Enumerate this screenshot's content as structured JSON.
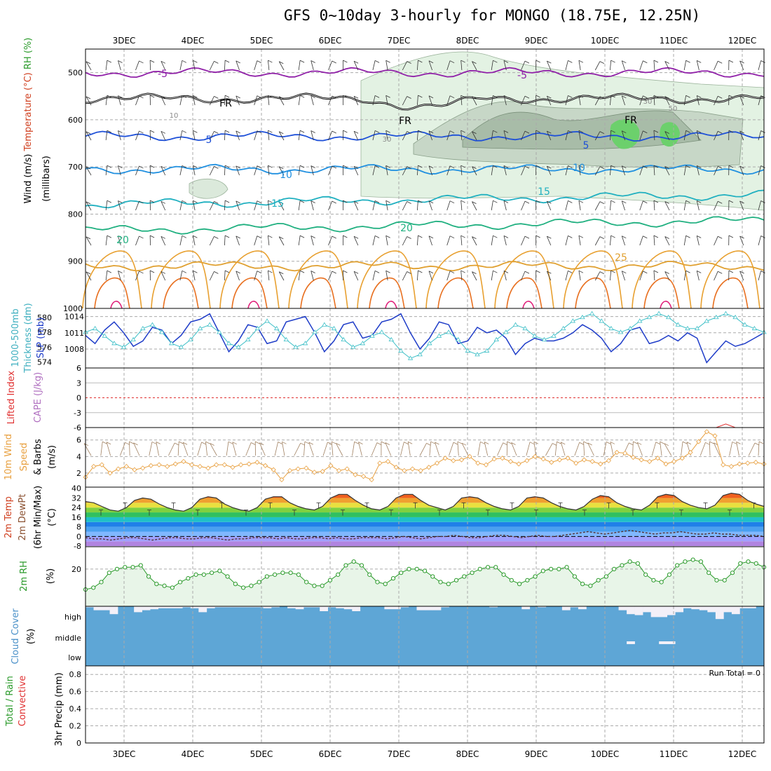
{
  "title": "GFS 0~10day 3-hourly for MONGO (18.75E, 12.25N)",
  "date_labels": [
    "3DEC",
    "4DEC",
    "5DEC",
    "6DEC",
    "7DEC",
    "8DEC",
    "9DEC",
    "10DEC",
    "11DEC",
    "12DEC"
  ],
  "colors": {
    "grid": "#aaaaaa",
    "cloud": "#5ea6d6",
    "rh_shade": "#e8f5e8",
    "rh_line": "#2a9a2a",
    "wind10": "#e8a040",
    "slp": "#1e3cc8",
    "thick": "#40c0c8",
    "cape_line": "#e03030"
  },
  "chart_data": [
    {
      "type": "contour",
      "panel": "upper-air",
      "ylabel_parts": [
        "Wind (m/s)",
        "Temperature (°C)",
        "RH (%)",
        "(millibars)"
      ],
      "y_ticks": [
        500,
        600,
        700,
        800,
        900,
        1000
      ],
      "y_range": [
        450,
        1000
      ],
      "isotherms": [
        {
          "label": "-5",
          "level_mb": 500
        },
        {
          "label": "FR",
          "level_mb": 555
        },
        {
          "label": "5",
          "level_mb": 635
        },
        {
          "label": "10",
          "level_mb": 705
        },
        {
          "label": "15",
          "level_mb": 780
        },
        {
          "label": "20",
          "level_mb": 835
        },
        {
          "label": "25",
          "level_mb": 910
        }
      ],
      "rh_contour_labels": [
        "10",
        "30",
        "30",
        "50"
      ]
    },
    {
      "type": "line",
      "panel": "slp-thickness",
      "ylabel_parts": [
        "1000-500mb",
        "Thickness (dm)",
        "SLP (mb)"
      ],
      "left_ticks": [
        "580",
        "578",
        "576",
        "574"
      ],
      "right_ticks": [
        "1014",
        "1011",
        "1008"
      ],
      "series": [
        {
          "name": "SLP (mb)",
          "values": [
            1010.5,
            1009,
            1011.5,
            1013,
            1011,
            1008.5,
            1009.5,
            1012,
            1011.5,
            1009,
            1010.5,
            1013,
            1013.5,
            1014.5,
            1011,
            1007.5,
            1009.5,
            1012.5,
            1012,
            1009,
            1009.5,
            1013,
            1013.5,
            1014,
            1011,
            1007.5,
            1009.5,
            1012.5,
            1013,
            1010,
            1010.5,
            1013,
            1013.5,
            1014.5,
            1011,
            1008,
            1010,
            1013,
            1012.5,
            1009,
            1009.5,
            1012,
            1011,
            1011.5,
            1010,
            1007,
            1009,
            1010,
            1009.5,
            1009.5,
            1010,
            1011,
            1012.5,
            1011.5,
            1010,
            1007.5,
            1009,
            1011.5,
            1012,
            1009,
            1009.5,
            1010.5,
            1009.5,
            1011,
            1010,
            1005.5,
            1007.5,
            1009.5,
            1008.5,
            1009,
            1010,
            1011
          ]
        },
        {
          "name": "Thickness (dm)",
          "values": [
            578,
            578.5,
            577.5,
            576.5,
            576,
            577,
            578.5,
            579,
            578,
            576.5,
            576,
            577,
            578.5,
            579,
            578,
            576.5,
            576,
            577,
            578.5,
            579.5,
            578.5,
            577,
            576,
            576.5,
            578,
            579,
            578.5,
            577,
            576,
            576.5,
            577.5,
            578,
            577,
            575.5,
            574.5,
            575,
            576.5,
            577.5,
            578,
            577,
            575.5,
            575,
            575.5,
            577,
            578,
            579,
            578.5,
            577.5,
            577,
            577.5,
            578.5,
            579.5,
            580,
            580.5,
            579.5,
            578.5,
            578,
            578.5,
            579.5,
            580,
            580.5,
            580,
            579,
            578.5,
            578.5,
            579.5,
            580,
            580.5,
            580,
            579,
            578.5,
            578
          ]
        }
      ]
    },
    {
      "type": "line",
      "panel": "cape-li",
      "ylabel_parts": [
        "Lifted Index",
        "CAPE (J/kg)"
      ],
      "left_ticks": [
        "6",
        "3",
        "0",
        "-3",
        "-6"
      ],
      "series": [
        {
          "name": "CAPE",
          "values": [
            0,
            0,
            0,
            0,
            0,
            0,
            0,
            0,
            0,
            0,
            0,
            0,
            0,
            0,
            0,
            0,
            0,
            0,
            0,
            0,
            0,
            0,
            0,
            0,
            0,
            0,
            0,
            0,
            0,
            0,
            0,
            0,
            0,
            0,
            0,
            0,
            0,
            0,
            0,
            0,
            0,
            0,
            0,
            0,
            0,
            0,
            0,
            0,
            0,
            0,
            0,
            0,
            0,
            0,
            0,
            0,
            0,
            0,
            0,
            0,
            0,
            0,
            0,
            0,
            0,
            0,
            0,
            12,
            0,
            0,
            0,
            0
          ]
        }
      ]
    },
    {
      "type": "line",
      "panel": "10m-wind",
      "ylabel_parts": [
        "10m Wind",
        "Speed",
        "& Barbs",
        "(m/s)"
      ],
      "y_ticks": [
        2,
        4,
        6
      ],
      "series": [
        {
          "name": "10m Wind Speed",
          "values": [
            1.5,
            2.8,
            3,
            2,
            2.5,
            2.8,
            2.4,
            2.6,
            2.9,
            3,
            2.8,
            3.1,
            3.4,
            3,
            2.8,
            2.6,
            3,
            3,
            2.7,
            3,
            3.1,
            3.3,
            2.9,
            2.4,
            1.2,
            2.3,
            2.5,
            2.6,
            2.1,
            2.2,
            2.9,
            2.3,
            2.5,
            1.8,
            1.6,
            1.2,
            3.2,
            3.4,
            2.7,
            2.3,
            2.5,
            2.3,
            2.7,
            3.2,
            3.8,
            3.5,
            3.6,
            4,
            3.2,
            3,
            3.7,
            3.8,
            3.4,
            3.1,
            3.5,
            4,
            3.7,
            3.3,
            3.6,
            3.8,
            3.2,
            3.6,
            3.4,
            3.1,
            3.5,
            4.5,
            4.4,
            3.9,
            3.6,
            3.4,
            3.8,
            3.1,
            3.4,
            3.8,
            4.5,
            5.8,
            7,
            6.5,
            3,
            2.8,
            3.1,
            3.2,
            3.3,
            3.1
          ]
        }
      ]
    },
    {
      "type": "area",
      "panel": "2m-temp",
      "ylabel_parts": [
        "2m Temp",
        "2m DewPt",
        "(6hr Min/Max)",
        "(°C)"
      ],
      "y_ticks": [
        -8,
        0,
        8,
        16,
        24,
        32,
        40
      ],
      "series": [
        {
          "name": "2m Temp",
          "values": [
            29,
            28,
            25,
            22,
            21,
            24,
            30,
            32,
            31,
            27,
            24,
            22,
            21,
            24,
            31,
            33,
            32,
            27,
            24,
            22,
            21,
            24,
            31,
            33,
            33,
            28,
            25,
            23,
            22,
            25,
            32,
            35,
            35,
            30,
            26,
            23,
            22,
            25,
            32,
            35,
            35,
            30,
            26,
            24,
            22,
            25,
            32,
            33,
            32,
            28,
            25,
            23,
            22,
            25,
            32,
            33,
            32,
            28,
            25,
            23,
            22,
            25,
            31,
            34,
            33,
            28,
            25,
            23,
            22,
            26,
            33,
            35,
            34,
            29,
            26,
            24,
            23,
            26,
            34,
            36,
            35,
            30,
            27,
            25
          ]
        },
        {
          "name": "2m DewPt",
          "values": [
            -1,
            -2,
            -2,
            -3,
            -2,
            -1,
            -1,
            -2,
            -3,
            -2,
            -1,
            -1,
            -2,
            -2,
            -1,
            -1,
            -2,
            -3,
            -2,
            -2,
            -1,
            -1,
            -1,
            -2,
            -1,
            -2,
            -2,
            -1,
            -1,
            -2,
            -1,
            -2,
            -2,
            -1,
            -1,
            -1,
            -2,
            -1,
            0,
            -1,
            -2,
            -1,
            0,
            0,
            1,
            0,
            -1,
            -1,
            0,
            1,
            1,
            0,
            -1,
            0,
            1,
            0,
            0,
            1,
            2,
            3,
            4,
            3,
            2,
            3,
            4,
            5,
            4,
            3,
            2,
            3,
            3,
            4,
            3,
            2,
            2,
            3,
            2,
            2,
            1,
            1,
            1,
            0
          ]
        }
      ]
    },
    {
      "type": "area",
      "panel": "2m-rh",
      "ylabel_parts": [
        "2m RH",
        "(%)"
      ],
      "y_ticks": [
        20
      ],
      "series": [
        {
          "name": "2m RH",
          "values": [
            9,
            10,
            13,
            18,
            20,
            21,
            21,
            22,
            16,
            12,
            11,
            10,
            13,
            15,
            17,
            17,
            18,
            19,
            16,
            12,
            10,
            11,
            13,
            16,
            17,
            18,
            18,
            17,
            13,
            11,
            11,
            14,
            17,
            22,
            24,
            22,
            17,
            13,
            12,
            15,
            18,
            20,
            20,
            19,
            16,
            13,
            12,
            14,
            16,
            18,
            20,
            21,
            21,
            17,
            14,
            12,
            14,
            16,
            19,
            20,
            20,
            21,
            16,
            12,
            11,
            14,
            16,
            20,
            22,
            24,
            23,
            17,
            14,
            13,
            17,
            22,
            24,
            25,
            24,
            18,
            14,
            14,
            18,
            23,
            24,
            23,
            21
          ]
        }
      ]
    },
    {
      "type": "heatmap",
      "panel": "cloud-cover",
      "ylabel_parts": [
        "Cloud Cover",
        "(%)"
      ],
      "levels": [
        "high",
        "middle",
        "low"
      ],
      "series": [
        {
          "name": "high",
          "values": [
            95,
            80,
            80,
            60,
            100,
            100,
            70,
            80,
            85,
            90,
            90,
            90,
            95,
            90,
            70,
            90,
            95,
            95,
            95,
            95,
            95,
            95,
            90,
            95,
            100,
            90,
            85,
            95,
            95,
            75,
            95,
            90,
            85,
            75,
            100,
            100,
            100,
            85,
            85,
            95,
            100,
            80,
            80,
            80,
            95,
            100,
            100,
            100,
            100,
            100,
            95,
            100,
            100,
            100,
            85,
            100,
            95,
            100,
            100,
            80,
            95,
            85,
            100,
            100,
            100,
            100,
            80,
            60,
            55,
            70,
            45,
            45,
            55,
            70,
            90,
            85,
            80,
            70,
            35,
            70,
            60,
            90,
            90,
            100
          ]
        },
        {
          "name": "middle",
          "values": [
            0,
            0,
            0,
            0,
            0,
            0,
            0,
            0,
            0,
            0,
            0,
            0,
            0,
            0,
            0,
            0,
            0,
            0,
            0,
            0,
            0,
            0,
            0,
            0,
            0,
            0,
            0,
            0,
            0,
            0,
            0,
            0,
            0,
            0,
            0,
            0,
            0,
            0,
            0,
            0,
            0,
            0,
            0,
            0,
            0,
            0,
            0,
            0,
            0,
            0,
            0,
            0,
            0,
            0,
            0,
            0,
            0,
            0,
            0,
            0,
            0,
            0,
            0,
            0,
            0,
            0,
            0,
            5,
            0,
            0,
            0,
            5,
            5,
            0,
            0,
            0,
            0,
            0,
            0,
            0,
            0,
            0,
            0,
            0
          ]
        },
        {
          "name": "low",
          "values": [
            0,
            0,
            0,
            0,
            0,
            0,
            0,
            0,
            0,
            0,
            0,
            0,
            0,
            0,
            0,
            0,
            0,
            0,
            0,
            0,
            0,
            0,
            0,
            0,
            0,
            0,
            0,
            0,
            0,
            0,
            0,
            0,
            0,
            0,
            0,
            0,
            0,
            0,
            0,
            0,
            0,
            0,
            0,
            0,
            0,
            0,
            0,
            0,
            0,
            0,
            0,
            0,
            0,
            0,
            0,
            0,
            0,
            0,
            0,
            0,
            0,
            0,
            0,
            0,
            0,
            0,
            0,
            0,
            0,
            0,
            0,
            0,
            0,
            0,
            0,
            0,
            0,
            0,
            0,
            0,
            0,
            0,
            0,
            0
          ]
        }
      ]
    },
    {
      "type": "bar",
      "panel": "precip",
      "ylabel_parts": [
        "Total / Rain",
        "Convective",
        "3hr Precip (mm)"
      ],
      "y_ticks": [
        "0",
        "0.2",
        "0.4",
        "0.6",
        "0.8"
      ],
      "ylim": [
        0,
        0.9
      ],
      "annotation": "Run Total = 0",
      "series": [
        {
          "name": "3hr Precip",
          "values": [
            0,
            0,
            0,
            0,
            0,
            0,
            0,
            0,
            0,
            0
          ]
        }
      ]
    }
  ]
}
